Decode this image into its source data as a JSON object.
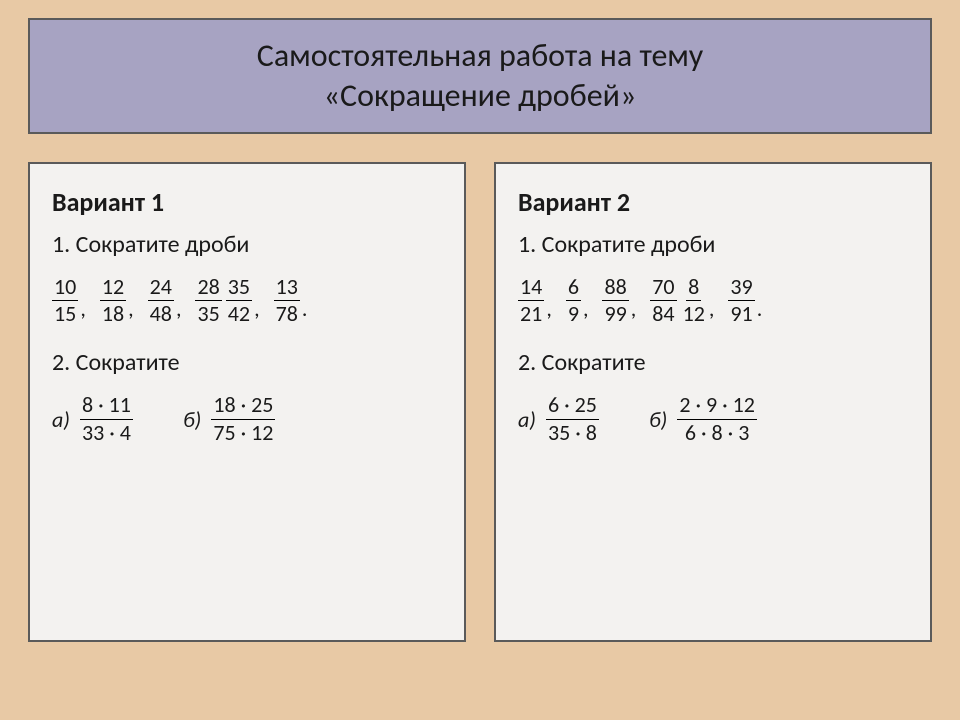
{
  "title": {
    "line1": "Самостоятельная работа на тему",
    "line2": "«Сокращение дробей»"
  },
  "colors": {
    "page_bg": "#e8c9a5",
    "title_bg": "#a7a3c2",
    "box_bg": "#f3f2f0",
    "border": "#5a5a5a",
    "text": "#1a1a1a"
  },
  "fonts": {
    "title_size": 32,
    "heading_size": 26,
    "task_size": 24,
    "math_size": 22
  },
  "variants": [
    {
      "title": "Вариант 1",
      "task1_label": "1. Сократите  дроби",
      "fractions": [
        {
          "num": "10",
          "den": "15"
        },
        {
          "num": "12",
          "den": "18"
        },
        {
          "num": "24",
          "den": "48"
        },
        {
          "num": "28",
          "den": "35"
        },
        {
          "num": "35",
          "den": "42"
        },
        {
          "num": "13",
          "den": "78"
        }
      ],
      "task2_label": "2. Сократите",
      "expressions": [
        {
          "label": "а)",
          "num": "8 · 11",
          "den": "33 · 4"
        },
        {
          "label": "б)",
          "num": "18 · 25",
          "den": "75 · 12"
        }
      ]
    },
    {
      "title": "Вариант 2",
      "task1_label": "1.  Сократите  дроби",
      "fractions": [
        {
          "num": "14",
          "den": "21"
        },
        {
          "num": "6",
          "den": "9"
        },
        {
          "num": "88",
          "den": "99"
        },
        {
          "num": "70",
          "den": "84"
        },
        {
          "num": "8",
          "den": "12"
        },
        {
          "num": "39",
          "den": "91"
        }
      ],
      "task2_label": "2. Сократите",
      "expressions": [
        {
          "label": "а)",
          "num": "6 · 25",
          "den": "35 · 8"
        },
        {
          "label": "б)",
          "num": "2 · 9 · 12",
          "den": "6 · 8 · 3"
        }
      ]
    }
  ],
  "separators": {
    "comma": ",",
    "period": "."
  }
}
